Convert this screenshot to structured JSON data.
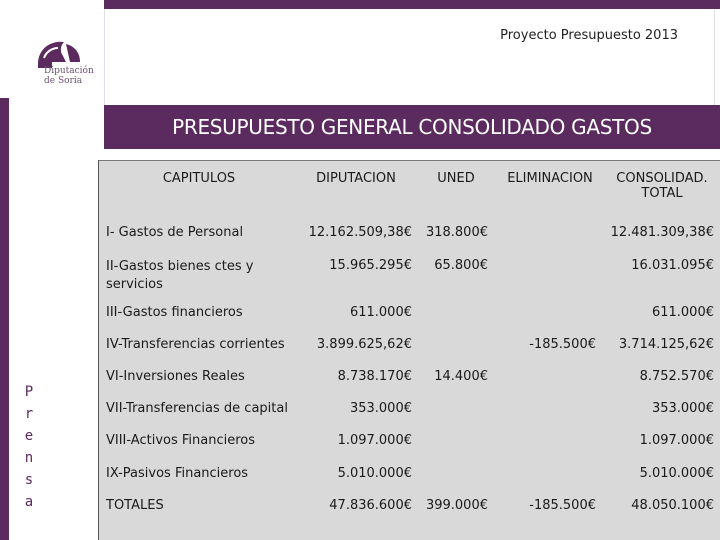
{
  "header": {
    "subtitle": "Proyecto Presupuesto 2013",
    "logo_line1": "Diputación",
    "logo_line2": "de Soria",
    "title": "PRESUPUESTO GENERAL CONSOLIDADO GASTOS"
  },
  "side_text": [
    "P",
    "r",
    "e",
    "n",
    "s",
    "a"
  ],
  "table": {
    "headers": {
      "capitulos": "CAPITULOS",
      "diputacion": "DIPUTACION",
      "uned": "UNED",
      "eliminacion": "ELIMINACION",
      "consolidad_1": "CONSOLIDAD.",
      "consolidad_2": "TOTAL"
    },
    "rows": [
      {
        "label": "I- Gastos de Personal",
        "diputacion": "12.162.509,38€",
        "uned": "318.800€",
        "eliminacion": "",
        "total": "12.481.309,38€"
      },
      {
        "label": "II-Gastos bienes ctes y servicios",
        "diputacion": "15.965.295€",
        "uned": "65.800€",
        "eliminacion": "",
        "total": "16.031.095€"
      },
      {
        "label": "III-Gastos financieros",
        "diputacion": "611.000€",
        "uned": "",
        "eliminacion": "",
        "total": "611.000€"
      },
      {
        "label": "IV-Transferencias corrientes",
        "diputacion": "3.899.625,62€",
        "uned": "",
        "eliminacion": "-185.500€",
        "total": "3.714.125,62€"
      },
      {
        "label": "VI-Inversiones Reales",
        "diputacion": "8.738.170€",
        "uned": "14.400€",
        "eliminacion": "",
        "total": "8.752.570€"
      },
      {
        "label": "VII-Transferencias de capital",
        "diputacion": "353.000€",
        "uned": "",
        "eliminacion": "",
        "total": "353.000€"
      },
      {
        "label": "VIII-Activos Financieros",
        "diputacion": "1.097.000€",
        "uned": "",
        "eliminacion": "",
        "total": "1.097.000€"
      },
      {
        "label": "IX-Pasivos Financieros",
        "diputacion": "5.010.000€",
        "uned": "",
        "eliminacion": "",
        "total": "5.010.000€"
      },
      {
        "label": "TOTALES",
        "diputacion": "47.836.600€",
        "uned": "399.000€",
        "eliminacion": "-185.500€",
        "total": "48.050.100€"
      }
    ]
  }
}
